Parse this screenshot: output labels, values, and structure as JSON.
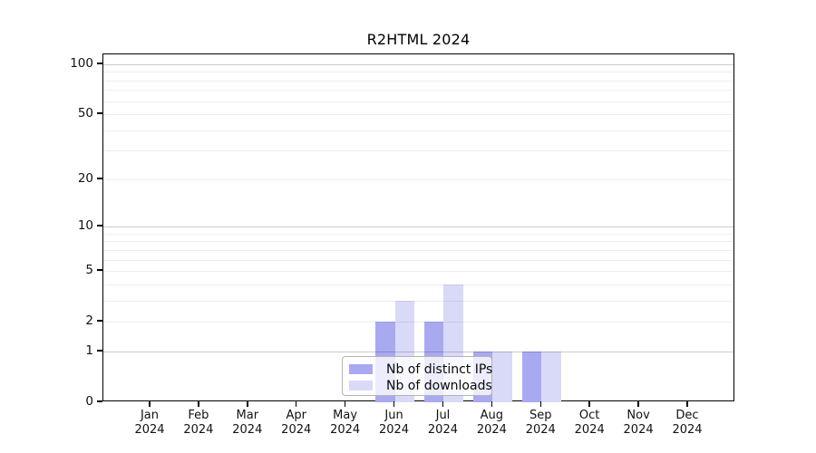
{
  "chart_data": {
    "type": "bar",
    "title": "R2HTML 2024",
    "categories": [
      {
        "month": "Jan",
        "year": "2024"
      },
      {
        "month": "Feb",
        "year": "2024"
      },
      {
        "month": "Mar",
        "year": "2024"
      },
      {
        "month": "Apr",
        "year": "2024"
      },
      {
        "month": "May",
        "year": "2024"
      },
      {
        "month": "Jun",
        "year": "2024"
      },
      {
        "month": "Jul",
        "year": "2024"
      },
      {
        "month": "Aug",
        "year": "2024"
      },
      {
        "month": "Sep",
        "year": "2024"
      },
      {
        "month": "Oct",
        "year": "2024"
      },
      {
        "month": "Nov",
        "year": "2024"
      },
      {
        "month": "Dec",
        "year": "2024"
      }
    ],
    "series": [
      {
        "name": "Nb of distinct IPs",
        "color": "#a9a9f2",
        "values": [
          0,
          0,
          0,
          0,
          0,
          2,
          2,
          1,
          1,
          0,
          0,
          0
        ]
      },
      {
        "name": "Nb of downloads",
        "color": "#d9d9f8",
        "values": [
          0,
          0,
          0,
          0,
          0,
          3,
          4,
          1,
          1,
          0,
          0,
          0
        ]
      }
    ],
    "xlabel": "",
    "ylabel": "",
    "ylim": [
      0,
      100
    ],
    "y_scale": "log10(1+x)",
    "y_ticks": [
      0,
      1,
      2,
      5,
      10,
      20,
      50,
      100
    ],
    "y_gridlines_major": [
      1,
      10,
      100
    ],
    "y_gridlines_minor": [
      2,
      3,
      4,
      5,
      6,
      7,
      8,
      9,
      20,
      30,
      40,
      50,
      60,
      70,
      80,
      90
    ],
    "grid": true,
    "legend_position": "inside-bottom-center",
    "colors": {
      "frame": "#000000",
      "gridline_major": "rgba(0,0,0,0.20)",
      "gridline_minor": "rgba(0,0,0,0.07)",
      "background": "#ffffff",
      "text": "#111111"
    }
  }
}
